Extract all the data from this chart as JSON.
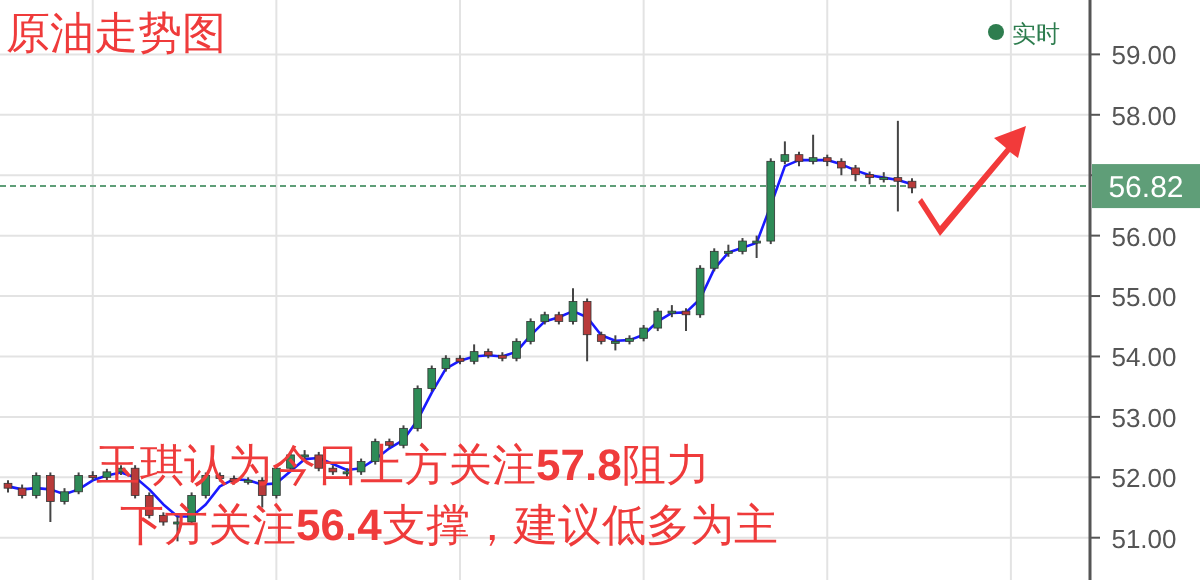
{
  "chart_data": {
    "type": "candlestick",
    "title": "原油走势图",
    "categories": [
      null,
      null,
      null,
      null,
      null,
      null,
      null,
      null,
      null,
      null,
      null,
      null,
      null,
      null,
      null,
      null,
      null,
      null,
      null,
      null,
      null,
      null,
      null,
      null,
      null,
      null,
      null,
      null,
      null,
      null,
      null,
      null,
      null,
      null,
      null,
      null,
      null,
      null,
      null,
      null,
      null,
      null,
      null,
      null,
      null,
      null,
      null,
      null,
      null,
      null,
      null,
      null,
      null,
      null,
      null,
      null,
      null,
      null,
      null,
      null,
      null,
      null,
      null,
      null,
      null
    ],
    "ohlc": [
      [
        51.9,
        51.95,
        51.75,
        51.82
      ],
      [
        51.82,
        51.88,
        51.65,
        51.7
      ],
      [
        51.7,
        52.08,
        51.65,
        52.03
      ],
      [
        52.03,
        52.08,
        51.26,
        51.6
      ],
      [
        51.6,
        51.82,
        51.55,
        51.76
      ],
      [
        51.76,
        52.08,
        51.72,
        52.03
      ],
      [
        52.03,
        52.1,
        51.95,
        52.0
      ],
      [
        52.0,
        52.14,
        51.95,
        52.09
      ],
      [
        52.09,
        52.2,
        52.04,
        52.15
      ],
      [
        52.15,
        52.2,
        51.65,
        51.7
      ],
      [
        51.7,
        51.75,
        51.32,
        51.37
      ],
      [
        51.37,
        51.42,
        51.2,
        51.26
      ],
      [
        51.26,
        51.35,
        50.94,
        51.26
      ],
      [
        51.26,
        51.75,
        51.21,
        51.7
      ],
      [
        51.7,
        52.08,
        51.65,
        52.03
      ],
      [
        52.03,
        52.08,
        51.93,
        51.98
      ],
      [
        51.98,
        52.03,
        51.88,
        51.93
      ],
      [
        51.93,
        52.0,
        51.88,
        51.95
      ],
      [
        51.95,
        52.0,
        51.5,
        51.7
      ],
      [
        51.7,
        52.2,
        51.65,
        52.15
      ],
      [
        52.15,
        52.42,
        52.1,
        52.37
      ],
      [
        52.37,
        52.45,
        52.3,
        52.37
      ],
      [
        52.37,
        52.42,
        52.1,
        52.15
      ],
      [
        52.15,
        52.2,
        52.04,
        52.09
      ],
      [
        52.09,
        52.15,
        52.0,
        52.09
      ],
      [
        52.09,
        52.31,
        52.04,
        52.26
      ],
      [
        52.26,
        52.64,
        52.21,
        52.59
      ],
      [
        52.59,
        52.64,
        52.48,
        52.53
      ],
      [
        52.53,
        52.86,
        52.48,
        52.81
      ],
      [
        52.81,
        53.52,
        52.76,
        53.47
      ],
      [
        53.47,
        53.85,
        53.42,
        53.8
      ],
      [
        53.8,
        54.02,
        53.75,
        53.97
      ],
      [
        53.97,
        54.02,
        53.87,
        53.92
      ],
      [
        53.92,
        54.2,
        53.87,
        54.08
      ],
      [
        54.08,
        54.13,
        53.97,
        54.02
      ],
      [
        54.02,
        54.07,
        53.92,
        53.97
      ],
      [
        53.97,
        54.3,
        53.92,
        54.25
      ],
      [
        54.25,
        54.63,
        54.2,
        54.58
      ],
      [
        54.58,
        54.74,
        54.53,
        54.69
      ],
      [
        54.69,
        54.74,
        54.53,
        54.58
      ],
      [
        54.58,
        55.13,
        54.53,
        54.91
      ],
      [
        54.91,
        54.96,
        53.92,
        54.36
      ],
      [
        54.36,
        54.41,
        54.2,
        54.25
      ],
      [
        54.25,
        54.35,
        54.1,
        54.25
      ],
      [
        54.25,
        54.35,
        54.2,
        54.3
      ],
      [
        54.3,
        54.52,
        54.25,
        54.47
      ],
      [
        54.47,
        54.8,
        54.42,
        54.75
      ],
      [
        54.75,
        54.85,
        54.65,
        54.75
      ],
      [
        54.75,
        54.8,
        54.42,
        54.69
      ],
      [
        54.69,
        55.51,
        54.64,
        55.46
      ],
      [
        55.46,
        55.79,
        55.41,
        55.74
      ],
      [
        55.74,
        55.85,
        55.65,
        55.74
      ],
      [
        55.74,
        55.96,
        55.69,
        55.91
      ],
      [
        55.91,
        56.0,
        55.63,
        55.91
      ],
      [
        55.91,
        57.28,
        55.86,
        57.23
      ],
      [
        57.23,
        57.56,
        57.18,
        57.34
      ],
      [
        57.34,
        57.39,
        57.15,
        57.23
      ],
      [
        57.23,
        57.67,
        57.18,
        57.29
      ],
      [
        57.29,
        57.34,
        57.15,
        57.23
      ],
      [
        57.23,
        57.28,
        57.0,
        57.12
      ],
      [
        57.12,
        57.17,
        56.9,
        57.01
      ],
      [
        57.01,
        57.06,
        56.85,
        56.96
      ],
      [
        56.96,
        57.05,
        56.88,
        56.96
      ],
      [
        56.96,
        57.9,
        56.4,
        56.9
      ],
      [
        56.9,
        56.95,
        56.7,
        56.79
      ]
    ],
    "series": [
      {
        "type": "line",
        "color": "#1a1aff",
        "values": [
          51.85,
          51.8,
          51.82,
          51.8,
          51.72,
          51.8,
          51.95,
          52.03,
          52.08,
          52.0,
          51.8,
          51.55,
          51.35,
          51.35,
          51.55,
          51.85,
          51.97,
          51.95,
          51.88,
          51.9,
          52.1,
          52.3,
          52.32,
          52.22,
          52.12,
          52.15,
          52.3,
          52.48,
          52.62,
          52.95,
          53.4,
          53.8,
          53.93,
          54.0,
          54.02,
          54.0,
          54.08,
          54.35,
          54.58,
          54.65,
          54.75,
          54.65,
          54.35,
          54.26,
          54.27,
          54.36,
          54.58,
          54.72,
          54.73,
          54.95,
          55.45,
          55.72,
          55.8,
          55.88,
          56.5,
          57.15,
          57.25,
          57.25,
          57.25,
          57.18,
          57.08,
          57.0,
          56.96,
          56.92,
          56.85
        ]
      }
    ],
    "ylim": [
      50.3,
      59.9
    ],
    "yticks": [
      {
        "value": 51,
        "label": "51.00"
      },
      {
        "value": 52,
        "label": "52.00"
      },
      {
        "value": 53,
        "label": "53.00"
      },
      {
        "value": 54,
        "label": "54.00"
      },
      {
        "value": 55,
        "label": "55.00"
      },
      {
        "value": 56,
        "label": "56.00"
      },
      {
        "value": 57,
        "label": null
      },
      {
        "value": 58,
        "label": "58.00"
      },
      {
        "value": 59,
        "label": "59.00"
      }
    ],
    "ref_lines": [
      {
        "axis": "y",
        "value": 56.82,
        "label": "56.82",
        "color": "#5f9e78",
        "line_style": "dashed"
      }
    ],
    "annotations": [
      "实时",
      "玉琪认为今日上方关注**57.8**阻力",
      "下方关注**56.4**支撑，建议低多为主"
    ],
    "grid": true,
    "tick_labels": "y"
  }
}
